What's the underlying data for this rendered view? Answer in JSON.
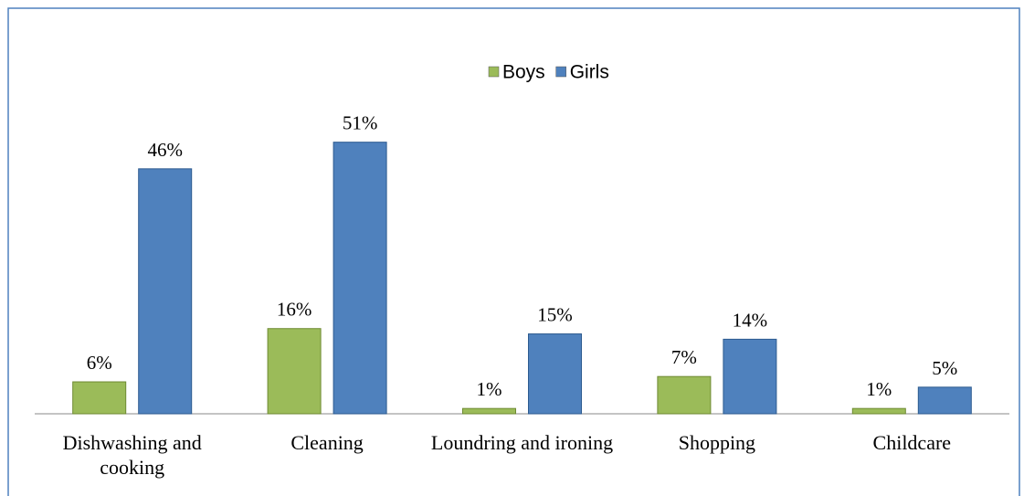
{
  "chart_data": {
    "type": "bar",
    "categories": [
      "Dishwashing and cooking",
      "Cleaning",
      "Loundring and ironing",
      "Shopping",
      "Childcare"
    ],
    "series": [
      {
        "name": "Boys",
        "color": "#9bbb59",
        "values": [
          6,
          16,
          1,
          7,
          1
        ],
        "value_labels": [
          "6%",
          "16%",
          "1%",
          "7%",
          "1%"
        ]
      },
      {
        "name": "Girls",
        "color": "#4f81bd",
        "values": [
          46,
          51,
          15,
          14,
          5
        ],
        "value_labels": [
          "46%",
          "51%",
          "15%",
          "14%",
          "5%"
        ]
      }
    ],
    "legend": "top"
  }
}
